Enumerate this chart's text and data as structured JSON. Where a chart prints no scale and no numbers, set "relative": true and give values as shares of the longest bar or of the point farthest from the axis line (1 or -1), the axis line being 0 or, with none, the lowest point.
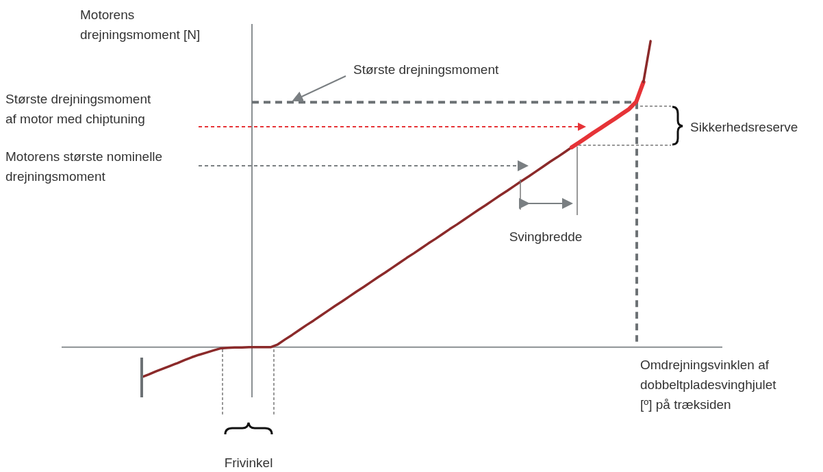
{
  "chart_data": {
    "type": "line",
    "relative": true,
    "xlabel": "Omdrejningsvinklen af dobbeltpladesvinghjulet [º] på træksiden",
    "ylabel": "Motorens drejningsmoment [N]",
    "categories": [
      null,
      null,
      null,
      null,
      null,
      null,
      null,
      null,
      null,
      null,
      null,
      null,
      null,
      null,
      null,
      null,
      null,
      null,
      null,
      null,
      null,
      null,
      null,
      null,
      null,
      null,
      null,
      null,
      null,
      null,
      null,
      null,
      null,
      null,
      null,
      null,
      null,
      null,
      null,
      null,
      null,
      null,
      null,
      null,
      null,
      null,
      null,
      null,
      null,
      null,
      null,
      null,
      null,
      null,
      null,
      null,
      null,
      null,
      null,
      null,
      null,
      null,
      null,
      null,
      null,
      null,
      null,
      null,
      null,
      null,
      null,
      null
    ],
    "series": [
      {
        "color": "#8b2a2a",
        "values": [
          -0.098,
          -0.089,
          -0.079,
          -0.07,
          -0.061,
          -0.052,
          -0.042,
          -0.033,
          -0.025,
          -0.018,
          -0.011,
          -0.004,
          -0.002,
          -0.001,
          -0.001,
          0,
          0,
          0,
          0,
          0.009,
          0.025,
          0.04,
          0.056,
          0.072,
          0.087,
          0.103,
          0.119,
          0.135,
          0.15,
          0.166,
          0.182,
          0.197,
          0.213,
          0.229,
          0.244,
          0.26,
          0.276,
          0.292,
          0.307,
          0.323,
          0.339,
          0.354,
          0.37,
          0.386,
          0.401,
          0.417,
          0.433,
          0.449,
          0.464,
          0.48,
          0.496,
          0.511,
          0.527,
          0.543,
          0.558,
          0.574,
          0.59,
          0.606,
          0.621,
          0.637,
          0.653,
          null,
          null,
          null,
          null,
          null,
          null,
          null,
          null,
          null,
          null,
          null
        ]
      },
      {
        "color": "#e63337",
        "values": [
          null,
          null,
          null,
          null,
          null,
          null,
          null,
          null,
          null,
          null,
          null,
          null,
          null,
          null,
          null,
          null,
          null,
          null,
          null,
          null,
          null,
          null,
          null,
          null,
          null,
          null,
          null,
          null,
          null,
          null,
          null,
          null,
          null,
          null,
          null,
          null,
          null,
          null,
          null,
          null,
          null,
          null,
          null,
          null,
          null,
          null,
          null,
          null,
          null,
          null,
          null,
          null,
          null,
          null,
          null,
          null,
          null,
          null,
          null,
          null,
          0.653,
          0.668,
          0.684,
          0.7,
          0.715,
          0.731,
          0.746,
          0.762,
          0.778,
          0.802,
          0.866,
          null
        ]
      },
      {
        "color": "#8b2a2a",
        "values": [
          null,
          null,
          null,
          null,
          null,
          null,
          null,
          null,
          null,
          null,
          null,
          null,
          null,
          null,
          null,
          null,
          null,
          null,
          null,
          null,
          null,
          null,
          null,
          null,
          null,
          null,
          null,
          null,
          null,
          null,
          null,
          null,
          null,
          null,
          null,
          null,
          null,
          null,
          null,
          null,
          null,
          null,
          null,
          null,
          null,
          null,
          null,
          null,
          null,
          null,
          null,
          null,
          null,
          null,
          null,
          null,
          null,
          null,
          null,
          null,
          null,
          null,
          null,
          null,
          null,
          null,
          null,
          null,
          null,
          null,
          0.866,
          1
        ]
      }
    ],
    "ref_lines": [
      {
        "axis": "y",
        "value": 0.8,
        "label": "Største drejningsmoment",
        "color": "#6d7275",
        "line_style": "dashed"
      }
    ],
    "annotations": [
      "Største drejningsmoment af motor med chiptuning",
      "Motorens største nominelle drejningsmoment",
      "Sikkerhedsreserve",
      "Svingbredde",
      "Frivinkel"
    ]
  }
}
